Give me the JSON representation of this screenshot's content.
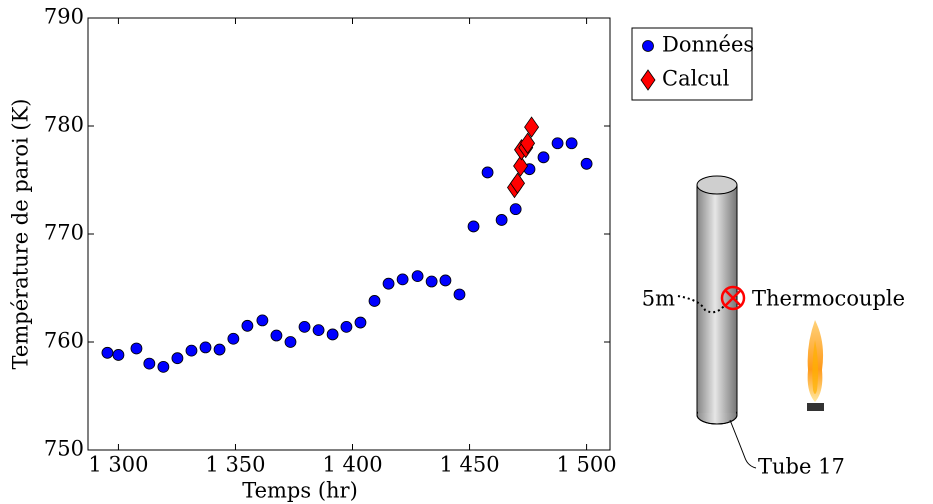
{
  "chart_data": {
    "type": "scatter",
    "xlabel": "Temps (hr)",
    "ylabel": "Température de paroi (K)",
    "xlim": [
      1287,
      1510
    ],
    "ylim": [
      750,
      790
    ],
    "xticks": [
      {
        "value": 1300,
        "label": "1 300"
      },
      {
        "value": 1350,
        "label": "1 350"
      },
      {
        "value": 1400,
        "label": "1 400"
      },
      {
        "value": 1450,
        "label": "1 450"
      },
      {
        "value": 1500,
        "label": "1 500"
      }
    ],
    "yticks": [
      750,
      760,
      770,
      780,
      790
    ],
    "legend": "outside-top-right",
    "series": [
      {
        "name": "Données",
        "color": "#0000ff",
        "marker": "circle",
        "x": [
          1295.3,
          1300,
          1307.7,
          1313.2,
          1319.2,
          1325.2,
          1331.2,
          1337.2,
          1343.2,
          1349.1,
          1355.1,
          1361.5,
          1367.5,
          1373.5,
          1379.5,
          1385.5,
          1391.5,
          1397.4,
          1403.4,
          1409.4,
          1415.4,
          1421.4,
          1427.8,
          1433.8,
          1439.7,
          1445.7,
          1451.7,
          1457.7,
          1463.7,
          1469.7,
          1475.6,
          1481.6,
          1487.6,
          1493.6,
          1500
        ],
        "y": [
          759.0,
          758.8,
          759.4,
          758.0,
          757.7,
          758.5,
          759.2,
          759.5,
          759.3,
          760.3,
          761.5,
          762.0,
          760.6,
          760.0,
          761.4,
          761.1,
          760.7,
          761.4,
          761.8,
          763.8,
          765.4,
          765.8,
          766.1,
          765.6,
          765.7,
          764.4,
          770.7,
          775.7,
          771.3,
          772.3,
          776.0,
          777.1,
          778.4,
          778.4,
          776.5
        ]
      },
      {
        "name": "Calcul",
        "color": "#ff0000",
        "marker": "diamond",
        "x": [
          1469.2,
          1470.5,
          1471.8,
          1472.2,
          1474.0,
          1474.8,
          1476.5
        ],
        "y": [
          774.3,
          774.7,
          776.3,
          777.8,
          778.0,
          778.4,
          779.9
        ]
      }
    ],
    "annotations": [
      "5m",
      "Thermocouple",
      "Tube 17"
    ]
  }
}
